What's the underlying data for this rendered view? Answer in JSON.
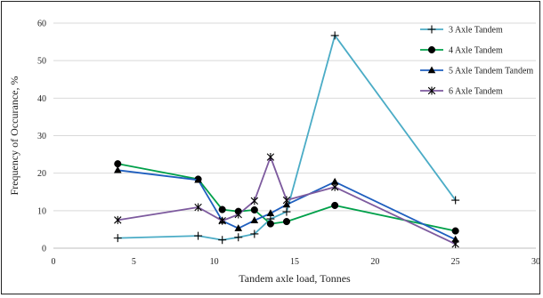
{
  "chart_data": {
    "type": "line",
    "title": "",
    "xlabel": "Tandem axle load, Tonnes",
    "ylabel": "Frequency of Occurance, %",
    "xlim": [
      0,
      30
    ],
    "ylim": [
      0,
      60
    ],
    "xticks": [
      0,
      5,
      10,
      15,
      20,
      25,
      30
    ],
    "yticks": [
      0,
      10,
      20,
      30,
      40,
      50,
      60
    ],
    "grid": "horizontal",
    "legend_position": "top-right",
    "series": [
      {
        "name": "3 Axle Tandem",
        "color": "#4bacc6",
        "marker": "plus",
        "points": [
          [
            4,
            2.7
          ],
          [
            9,
            3.3
          ],
          [
            10.5,
            2.2
          ],
          [
            11.5,
            2.9
          ],
          [
            12.5,
            3.8
          ],
          [
            13.5,
            7.8
          ],
          [
            14.5,
            9.7
          ],
          [
            17.5,
            56.7
          ],
          [
            25,
            12.8
          ]
        ]
      },
      {
        "name": "4 Axle Tandem",
        "color": "#00a04a",
        "marker": "circle",
        "points": [
          [
            4,
            22.5
          ],
          [
            9,
            18.4
          ],
          [
            10.5,
            10.3
          ],
          [
            11.5,
            9.8
          ],
          [
            12.5,
            10.2
          ],
          [
            13.5,
            6.5
          ],
          [
            14.5,
            7.1
          ],
          [
            17.5,
            11.4
          ],
          [
            25,
            4.6
          ]
        ]
      },
      {
        "name": "5 Axle Tandem Tandem",
        "color": "#1f5fbf",
        "marker": "triangle",
        "points": [
          [
            4,
            20.8
          ],
          [
            9,
            18.2
          ],
          [
            10.5,
            7.3
          ],
          [
            11.5,
            5.3
          ],
          [
            12.5,
            7.4
          ],
          [
            13.5,
            9.3
          ],
          [
            14.5,
            11.6
          ],
          [
            17.5,
            17.7
          ],
          [
            25,
            2.3
          ]
        ]
      },
      {
        "name": "6 Axle Tandem",
        "color": "#7d5a9e",
        "marker": "star",
        "points": [
          [
            4,
            7.5
          ],
          [
            9,
            10.9
          ],
          [
            10.5,
            7.3
          ],
          [
            11.5,
            9.0
          ],
          [
            12.5,
            12.6
          ],
          [
            13.5,
            24.3
          ],
          [
            14.5,
            12.8
          ],
          [
            17.5,
            16.3
          ],
          [
            25,
            1.1
          ]
        ]
      }
    ]
  }
}
